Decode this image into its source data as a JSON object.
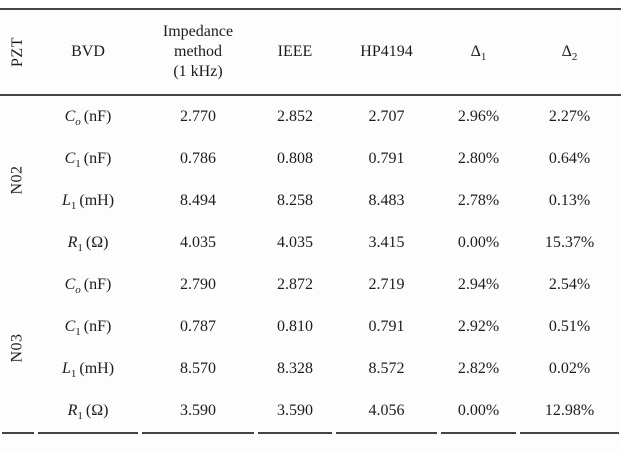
{
  "table": {
    "columns": {
      "pzt": "PZT",
      "bvd": "BVD",
      "impedance_lines": [
        "Impedance",
        "method",
        "(1 kHz)"
      ],
      "ieee": "IEEE",
      "hp4194": "HP4194",
      "delta1": {
        "symbol": "Δ",
        "sub": "1"
      },
      "delta2": {
        "symbol": "Δ",
        "sub": "2"
      }
    },
    "groups": [
      {
        "label": "N02",
        "rows": [
          {
            "sym": "C",
            "sub": "o",
            "unit": "(nF)",
            "impedance": "2.770",
            "ieee": "2.852",
            "hp4194": "2.707",
            "delta1": "2.96%",
            "delta2": "2.27%"
          },
          {
            "sym": "C",
            "sub": "1",
            "unit": "(nF)",
            "impedance": "0.786",
            "ieee": "0.808",
            "hp4194": "0.791",
            "delta1": "2.80%",
            "delta2": "0.64%"
          },
          {
            "sym": "L",
            "sub": "1",
            "unit": "(mH)",
            "impedance": "8.494",
            "ieee": "8.258",
            "hp4194": "8.483",
            "delta1": "2.78%",
            "delta2": "0.13%"
          },
          {
            "sym": "R",
            "sub": "1",
            "unit": "(Ω)",
            "impedance": "4.035",
            "ieee": "4.035",
            "hp4194": "3.415",
            "delta1": "0.00%",
            "delta2": "15.37%"
          }
        ]
      },
      {
        "label": "N03",
        "rows": [
          {
            "sym": "C",
            "sub": "o",
            "unit": "(nF)",
            "impedance": "2.790",
            "ieee": "2.872",
            "hp4194": "2.719",
            "delta1": "2.94%",
            "delta2": "2.54%"
          },
          {
            "sym": "C",
            "sub": "1",
            "unit": "(nF)",
            "impedance": "0.787",
            "ieee": "0.810",
            "hp4194": "0.791",
            "delta1": "2.92%",
            "delta2": "0.51%"
          },
          {
            "sym": "L",
            "sub": "1",
            "unit": "(mH)",
            "impedance": "8.570",
            "ieee": "8.328",
            "hp4194": "8.572",
            "delta1": "2.82%",
            "delta2": "0.02%"
          },
          {
            "sym": "R",
            "sub": "1",
            "unit": "(Ω)",
            "impedance": "3.590",
            "ieee": "3.590",
            "hp4194": "4.056",
            "delta1": "0.00%",
            "delta2": "12.98%"
          }
        ]
      }
    ],
    "colors": {
      "rule": "#444444",
      "text": "#1c1c1c",
      "background": "#fdfdfd"
    }
  }
}
